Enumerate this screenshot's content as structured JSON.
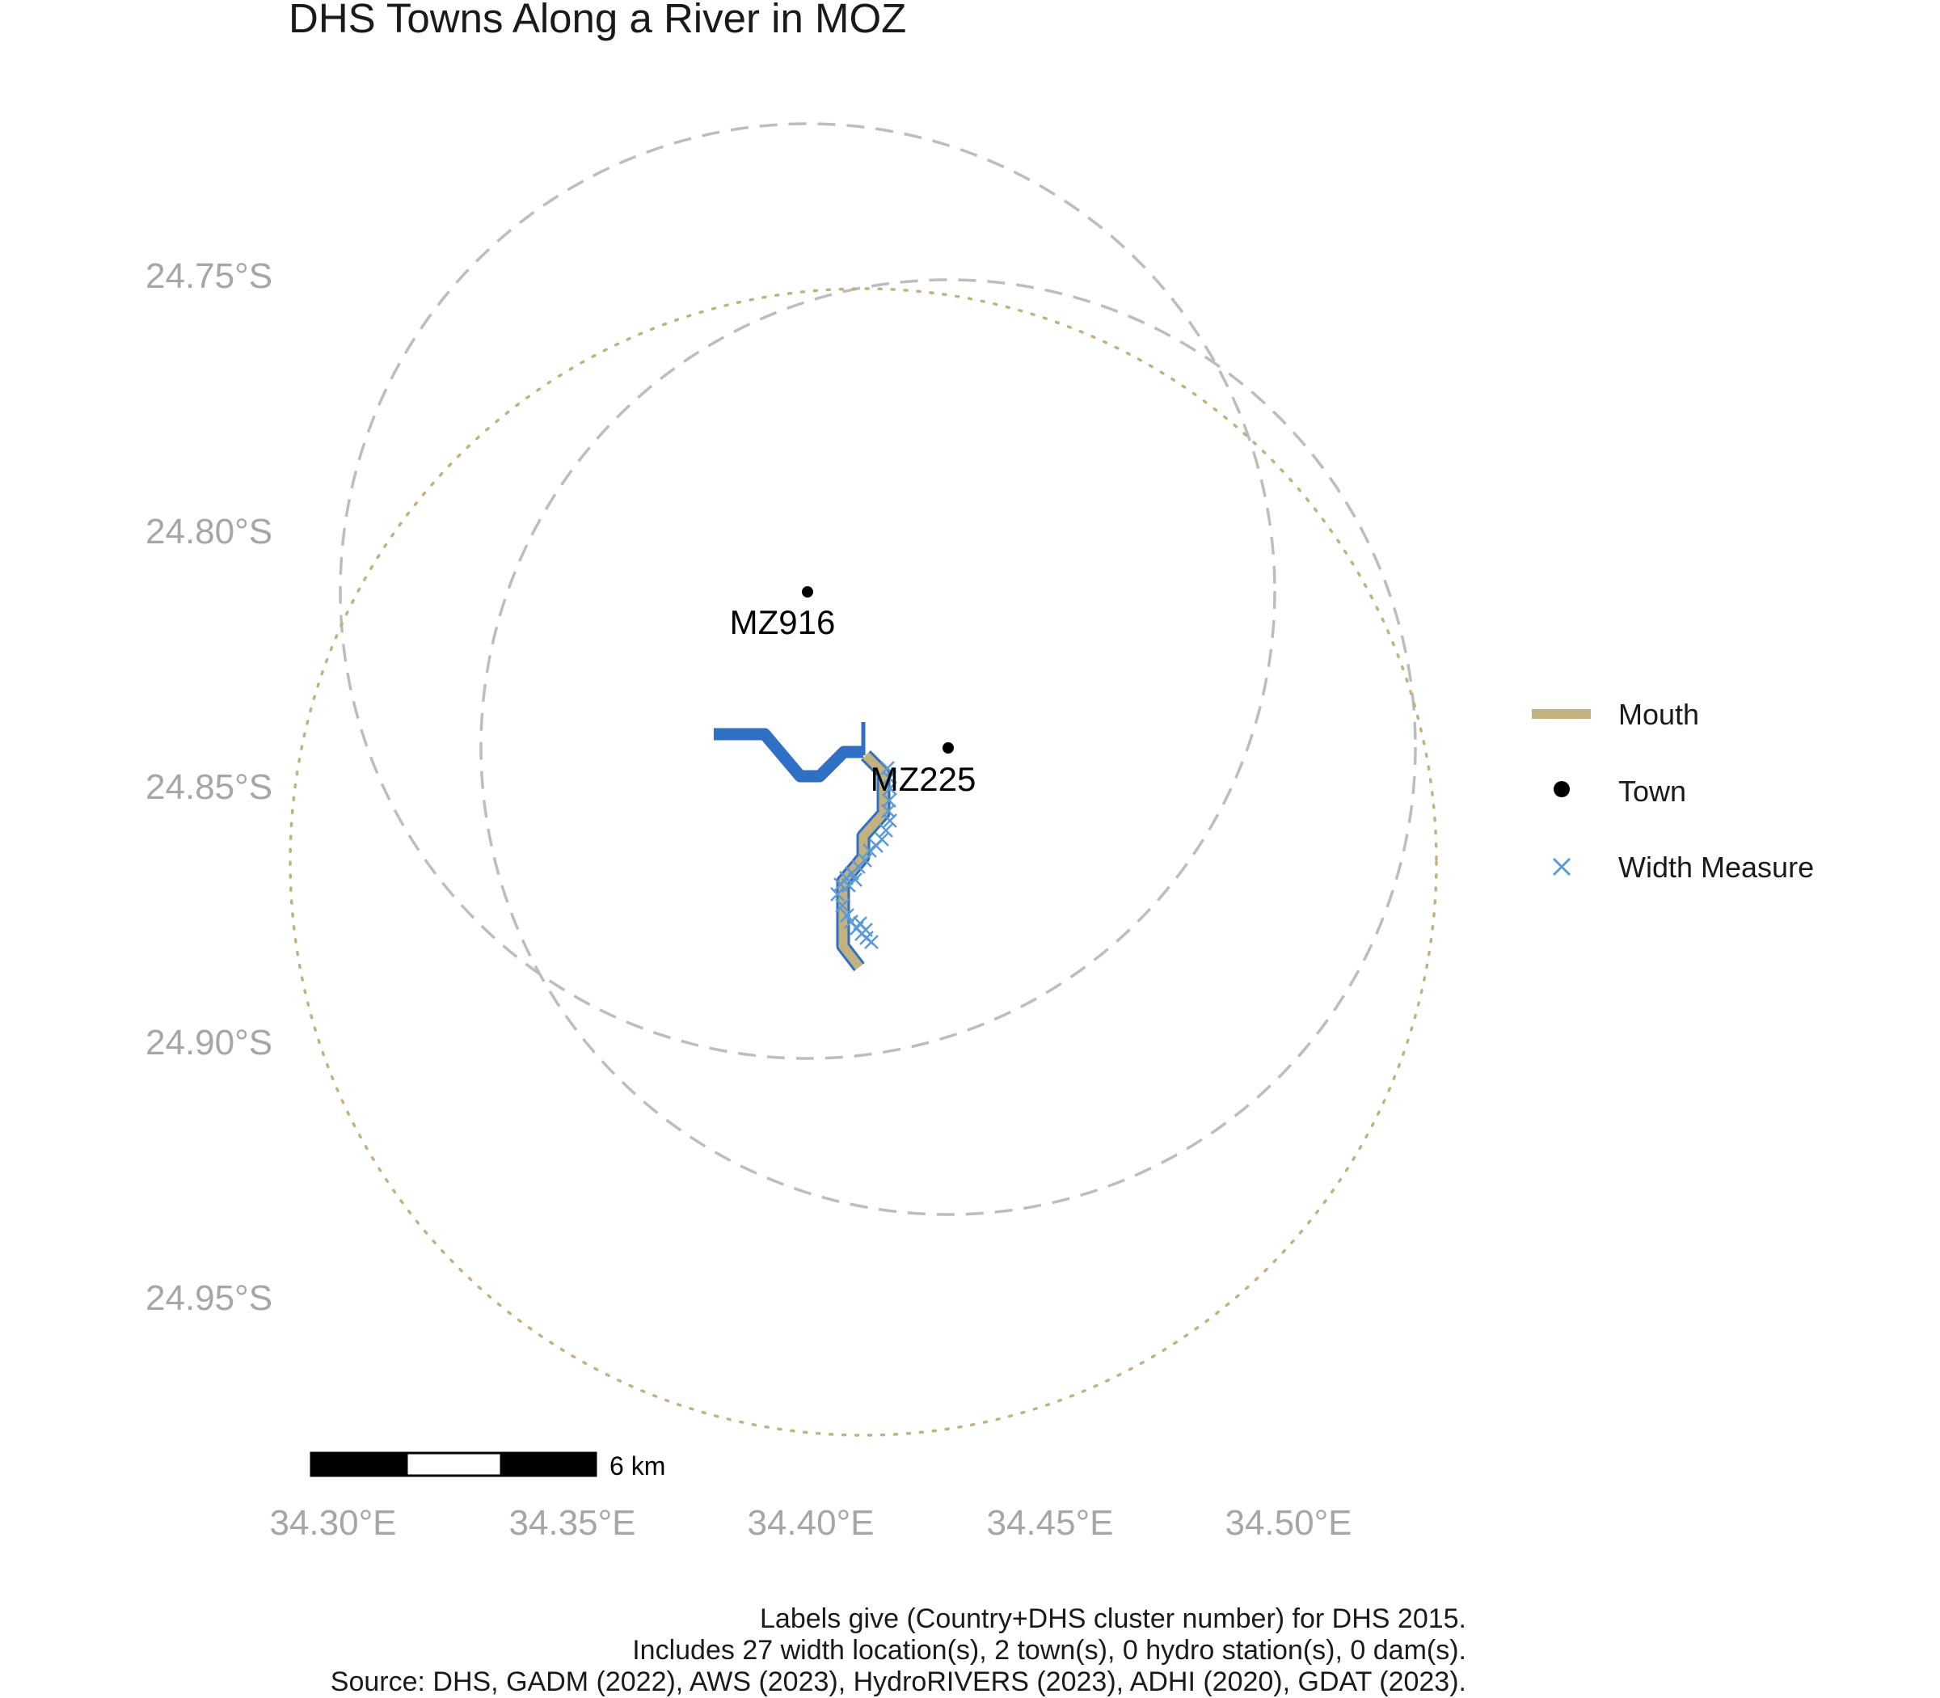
{
  "title": "DHS Towns Along a River in MOZ",
  "axes": {
    "lat_labels": [
      "24.75°S",
      "24.80°S",
      "24.85°S",
      "24.90°S",
      "24.95°S"
    ],
    "lon_labels": [
      "34.30°E",
      "34.35°E",
      "34.40°E",
      "34.45°E",
      "34.50°E"
    ]
  },
  "towns": [
    {
      "label": "MZ916",
      "lon": 34.399,
      "lat": -24.811
    },
    {
      "label": "MZ225",
      "lon": 34.428,
      "lat": -24.842
    }
  ],
  "legend": {
    "items": [
      {
        "label": "Mouth",
        "symbol": "line",
        "color": "#c2b280"
      },
      {
        "label": "Town",
        "symbol": "point",
        "color": "#000000"
      },
      {
        "label": "Width Measure",
        "symbol": "cross",
        "color": "#5b9bd5"
      }
    ]
  },
  "scale_bar": {
    "label": "6 km"
  },
  "caption": [
    "Labels give (Country+DHS cluster number) for DHS 2015.",
    "Includes 27 width location(s), 2 town(s), 0 hydro station(s), 0 dam(s).",
    "Source: DHS, GADM (2022), AWS (2023), HydroRIVERS (2023), ADHI (2020), GDAT (2023)."
  ],
  "colors": {
    "river": "#2f6fc4",
    "mouth": "#c2b280",
    "width_measure": "#5b9bd5",
    "buffer_dashed": "#bdbdbd",
    "buffer_dotted": "#c2b280",
    "axis_text": "#a6a6a6"
  }
}
